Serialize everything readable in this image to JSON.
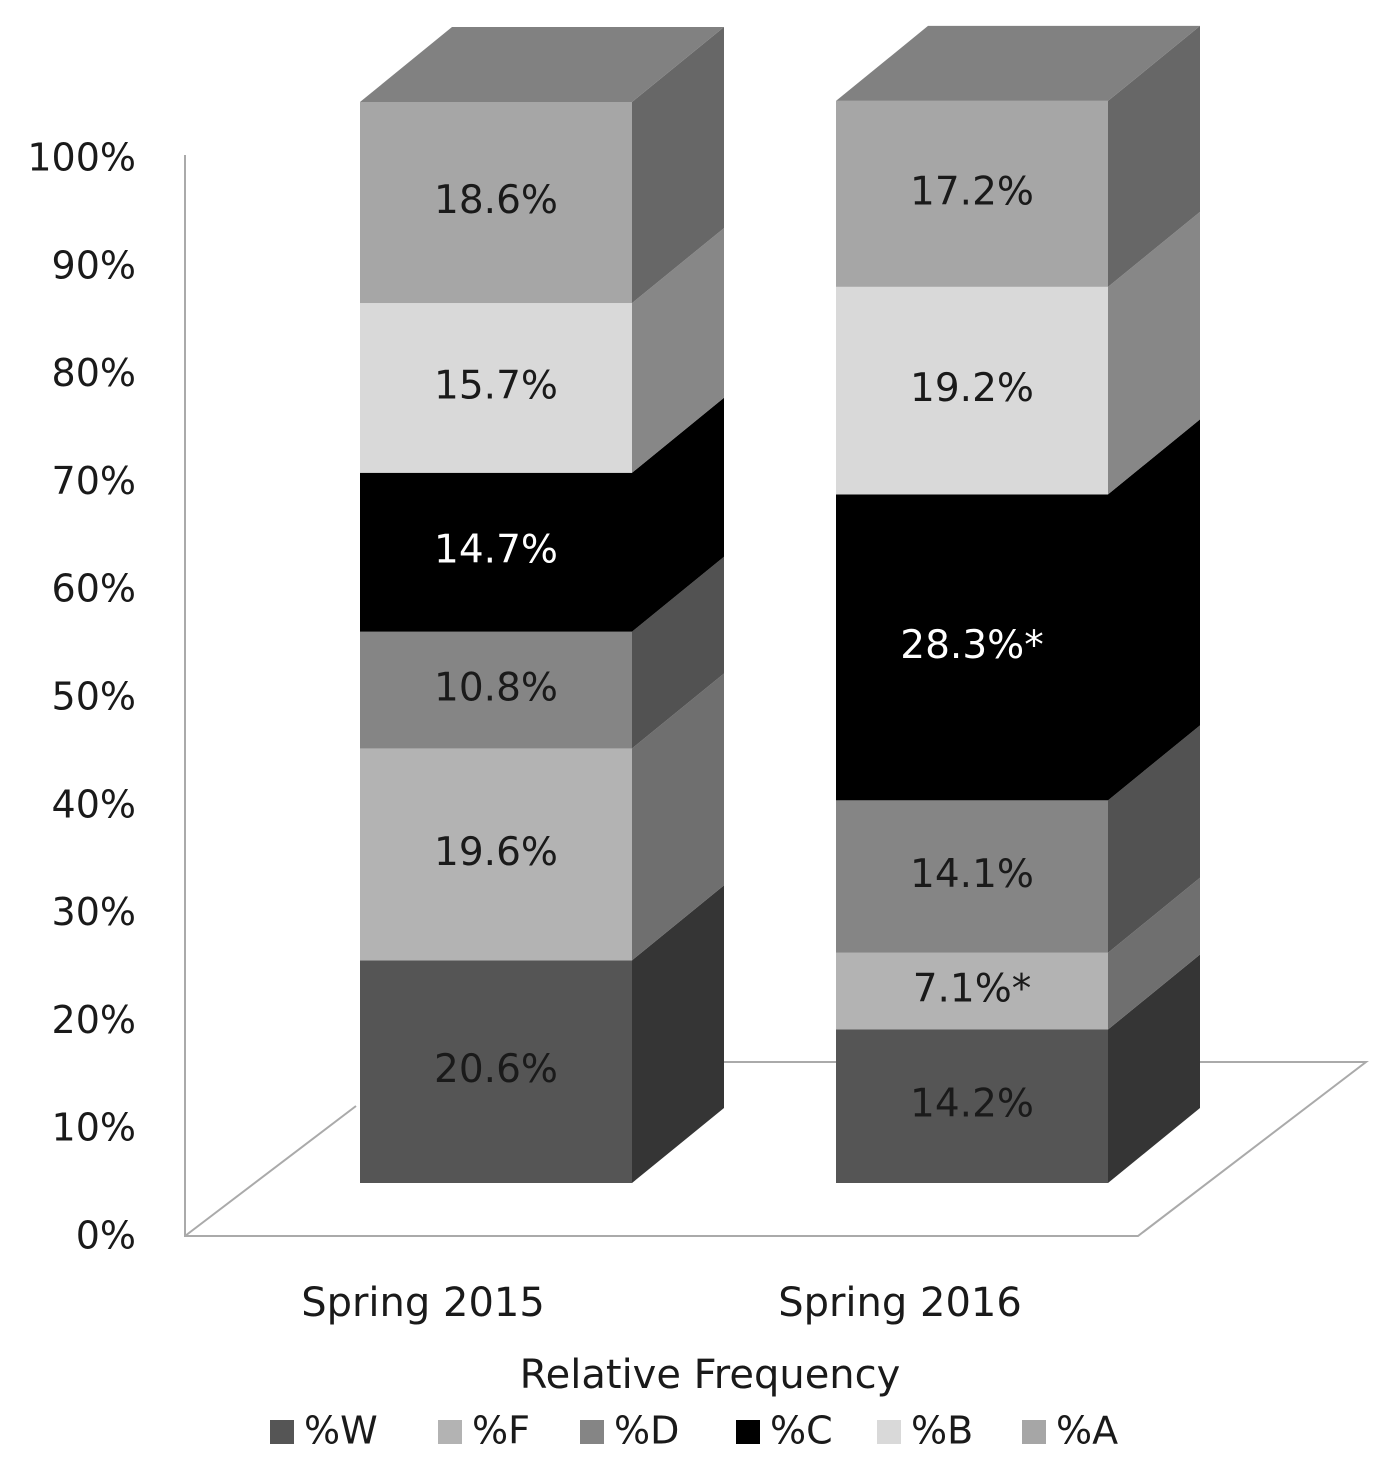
{
  "chart_data": {
    "type": "bar",
    "stacked": true,
    "three_d": true,
    "categories": [
      "Spring 2015",
      "Spring 2016"
    ],
    "xlabel": "Relative Frequency",
    "ylim": [
      0,
      100
    ],
    "y_ticks": [
      "0%",
      "10%",
      "20%",
      "30%",
      "40%",
      "50%",
      "60%",
      "70%",
      "80%",
      "90%",
      "100%"
    ],
    "legend_position": "bottom",
    "series": [
      {
        "name": "%W",
        "color": "#555555",
        "values": [
          20.6,
          14.2
        ],
        "labels": [
          "20.6%",
          "14.2%"
        ]
      },
      {
        "name": "%F",
        "color": "#b3b3b3",
        "values": [
          19.6,
          7.1
        ],
        "labels": [
          "19.6%",
          "7.1%*"
        ]
      },
      {
        "name": "%D",
        "color": "#858585",
        "values": [
          10.8,
          14.1
        ],
        "labels": [
          "10.8%",
          "14.1%"
        ]
      },
      {
        "name": "%C",
        "color": "#000000",
        "values": [
          14.7,
          28.3
        ],
        "labels": [
          "14.7%",
          "28.3%*"
        ]
      },
      {
        "name": "%B",
        "color": "#d9d9d9",
        "values": [
          15.7,
          19.2
        ],
        "labels": [
          "15.7%",
          "19.2%"
        ]
      },
      {
        "name": "%A",
        "color": "#a6a6a6",
        "values": [
          18.6,
          17.2
        ],
        "labels": [
          "18.6%",
          "17.2%"
        ]
      }
    ]
  }
}
